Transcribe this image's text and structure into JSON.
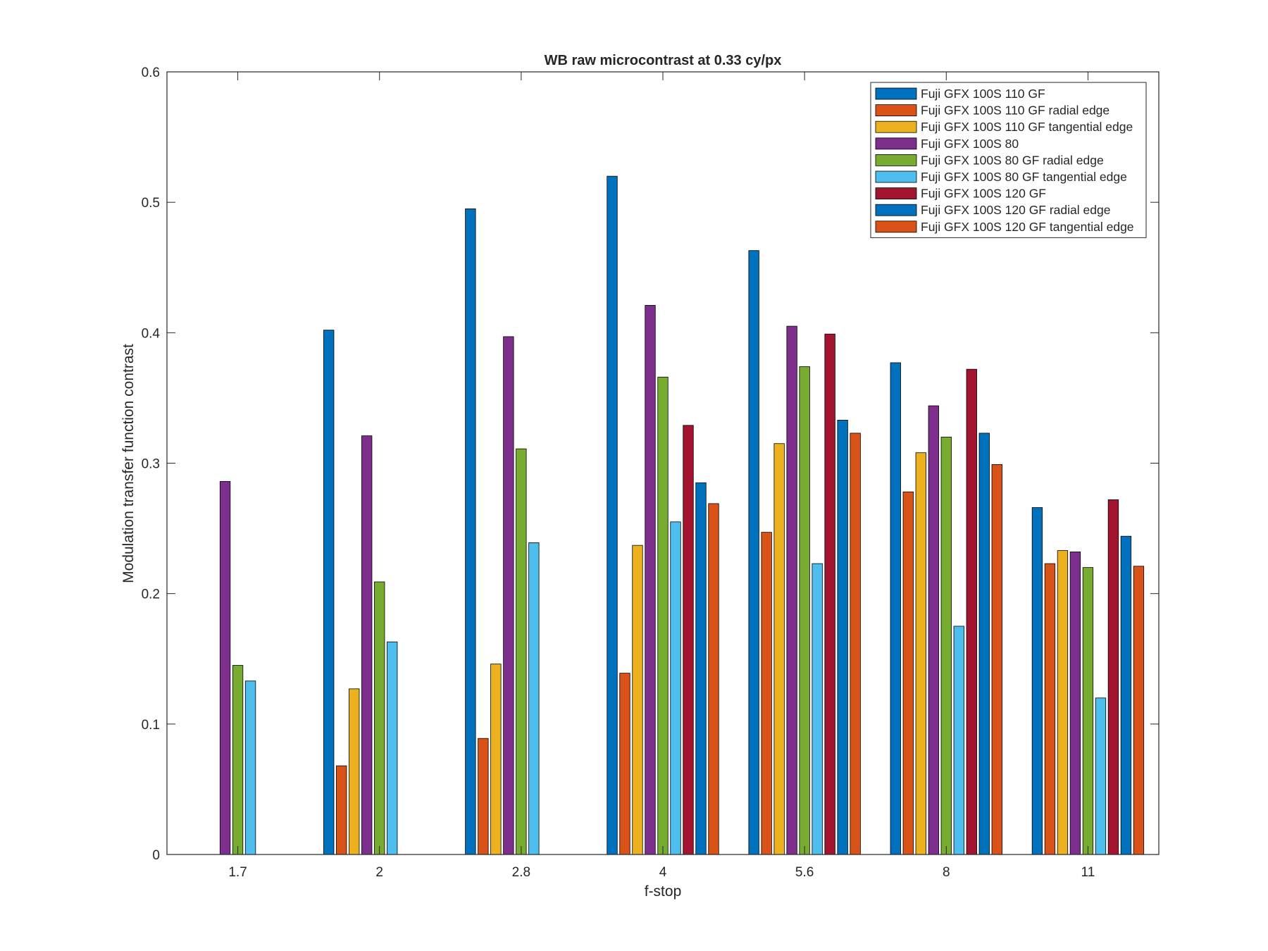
{
  "chart_data": {
    "type": "bar",
    "title": "WB raw  microcontrast at 0.33 cy/px",
    "xlabel": "f-stop",
    "ylabel": "Modulation transfer function contrast",
    "ylim": [
      0,
      0.6
    ],
    "yticks": [
      "0",
      "0.1",
      "0.2",
      "0.3",
      "0.4",
      "0.5",
      "0.6"
    ],
    "categories": [
      "1.7",
      "2",
      "2.8",
      "4",
      "5.6",
      "8",
      "11"
    ],
    "grid": false,
    "legend_position": "top-right",
    "series": [
      {
        "name": "Fuji GFX 100S 110 GF",
        "color": "#0072BD",
        "values": [
          null,
          0.402,
          0.495,
          0.52,
          0.463,
          0.377,
          0.266
        ]
      },
      {
        "name": "Fuji GFX 100S 110 GF radial edge",
        "color": "#D95319",
        "values": [
          null,
          0.068,
          0.089,
          0.139,
          0.247,
          0.278,
          0.223
        ]
      },
      {
        "name": "Fuji GFX 100S 110 GF tangential edge",
        "color": "#EDB120",
        "values": [
          null,
          0.127,
          0.146,
          0.237,
          0.315,
          0.308,
          0.233
        ]
      },
      {
        "name": "Fuji GFX 100S 80",
        "color": "#7E2F8E",
        "values": [
          0.286,
          0.321,
          0.397,
          0.421,
          0.405,
          0.344,
          0.232
        ]
      },
      {
        "name": "Fuji GFX 100S 80 GF radial edge",
        "color": "#77AC30",
        "values": [
          0.145,
          0.209,
          0.311,
          0.366,
          0.374,
          0.32,
          0.22
        ]
      },
      {
        "name": "Fuji GFX 100S 80 GF tangential edge",
        "color": "#4DBEEE",
        "values": [
          0.133,
          0.163,
          0.239,
          0.255,
          0.223,
          0.175,
          0.12
        ]
      },
      {
        "name": "Fuji GFX 100S 120 GF",
        "color": "#A2142F",
        "values": [
          null,
          null,
          null,
          0.329,
          0.399,
          0.372,
          0.272
        ]
      },
      {
        "name": "Fuji GFX 100S 120 GF radial edge",
        "color": "#0072BD",
        "values": [
          null,
          null,
          null,
          0.285,
          0.333,
          0.323,
          0.244
        ]
      },
      {
        "name": "Fuji GFX 100S 120 GF tangential edge",
        "color": "#D95319",
        "values": [
          null,
          null,
          null,
          0.269,
          0.323,
          0.299,
          0.221
        ]
      }
    ]
  }
}
